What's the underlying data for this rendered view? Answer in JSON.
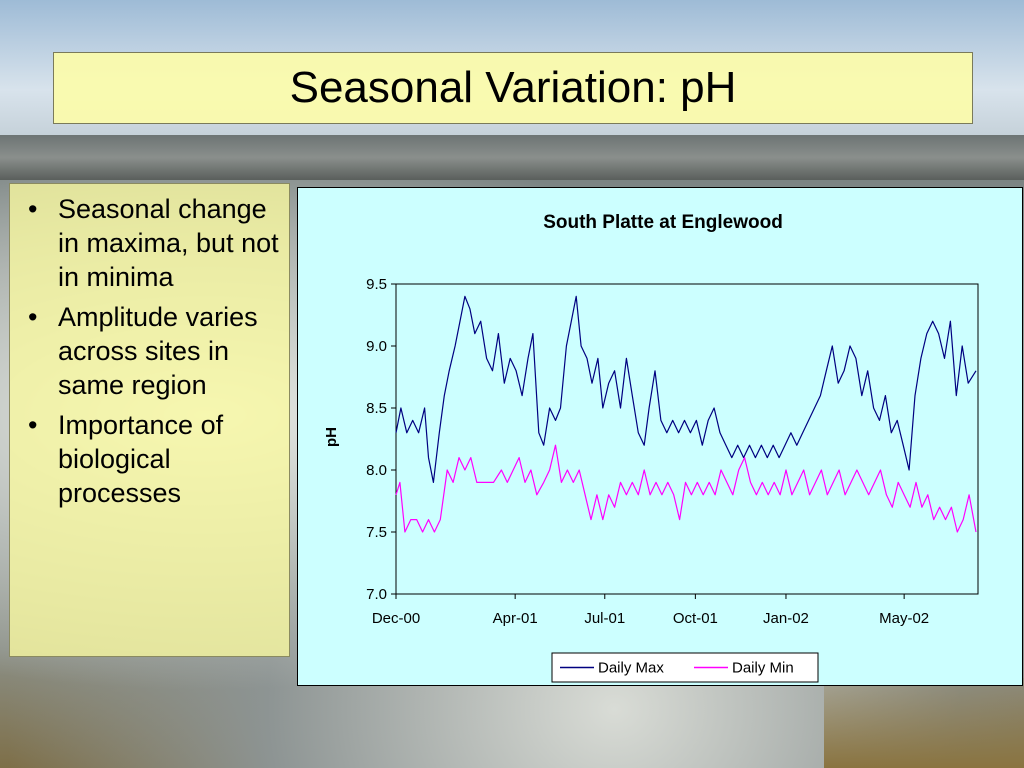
{
  "slide": {
    "title": "Seasonal Variation: pH",
    "bullets": [
      "Seasonal change in maxima, but not in minima",
      "Amplitude varies across sites in same region",
      "Importance of biological processes"
    ],
    "bullet_glyph": "•"
  },
  "colors": {
    "title_bg": "#fcfcaa",
    "chart_bg": "#ccffff",
    "max_line": "#000080",
    "min_line": "#ff00ff"
  },
  "chart_data": {
    "type": "line",
    "title": "South Platte at Englewood",
    "xlabel": "",
    "ylabel": "pH",
    "ylim": [
      7.0,
      9.5
    ],
    "yticks": [
      "7.0",
      "7.5",
      "8.0",
      "8.5",
      "9.0",
      "9.5"
    ],
    "xlim": [
      "2000-12-01",
      "2002-07-15"
    ],
    "xticks": [
      {
        "date": "2000-12-01",
        "label": "Dec-00"
      },
      {
        "date": "2001-04-01",
        "label": "Apr-01"
      },
      {
        "date": "2001-07-01",
        "label": "Jul-01"
      },
      {
        "date": "2001-10-01",
        "label": "Oct-01"
      },
      {
        "date": "2002-01-01",
        "label": "Jan-02"
      },
      {
        "date": "2002-05-01",
        "label": "May-02"
      }
    ],
    "legend_position": "bottom",
    "series": [
      {
        "name": "Daily Max",
        "color": "#000080",
        "points": [
          [
            "2000-12-01",
            8.3
          ],
          [
            "2000-12-06",
            8.5
          ],
          [
            "2000-12-12",
            8.3
          ],
          [
            "2000-12-18",
            8.4
          ],
          [
            "2000-12-24",
            8.3
          ],
          [
            "2000-12-30",
            8.5
          ],
          [
            "2001-01-03",
            8.1
          ],
          [
            "2001-01-08",
            7.9
          ],
          [
            "2001-01-14",
            8.3
          ],
          [
            "2001-01-19",
            8.6
          ],
          [
            "2001-01-24",
            8.8
          ],
          [
            "2001-01-30",
            9.0
          ],
          [
            "2001-02-04",
            9.2
          ],
          [
            "2001-02-09",
            9.4
          ],
          [
            "2001-02-14",
            9.3
          ],
          [
            "2001-02-19",
            9.1
          ],
          [
            "2001-02-25",
            9.2
          ],
          [
            "2001-03-03",
            8.9
          ],
          [
            "2001-03-09",
            8.8
          ],
          [
            "2001-03-15",
            9.1
          ],
          [
            "2001-03-21",
            8.7
          ],
          [
            "2001-03-27",
            8.9
          ],
          [
            "2001-04-02",
            8.8
          ],
          [
            "2001-04-08",
            8.6
          ],
          [
            "2001-04-14",
            8.9
          ],
          [
            "2001-04-19",
            9.1
          ],
          [
            "2001-04-25",
            8.3
          ],
          [
            "2001-04-30",
            8.2
          ],
          [
            "2001-05-06",
            8.5
          ],
          [
            "2001-05-12",
            8.4
          ],
          [
            "2001-05-17",
            8.5
          ],
          [
            "2001-05-23",
            9.0
          ],
          [
            "2001-05-28",
            9.2
          ],
          [
            "2001-06-02",
            9.4
          ],
          [
            "2001-06-07",
            9.0
          ],
          [
            "2001-06-13",
            8.9
          ],
          [
            "2001-06-18",
            8.7
          ],
          [
            "2001-06-24",
            8.9
          ],
          [
            "2001-06-29",
            8.5
          ],
          [
            "2001-07-05",
            8.7
          ],
          [
            "2001-07-11",
            8.8
          ],
          [
            "2001-07-17",
            8.5
          ],
          [
            "2001-07-23",
            8.9
          ],
          [
            "2001-07-29",
            8.6
          ],
          [
            "2001-08-04",
            8.3
          ],
          [
            "2001-08-10",
            8.2
          ],
          [
            "2001-08-15",
            8.5
          ],
          [
            "2001-08-21",
            8.8
          ],
          [
            "2001-08-27",
            8.4
          ],
          [
            "2001-09-02",
            8.3
          ],
          [
            "2001-09-08",
            8.4
          ],
          [
            "2001-09-14",
            8.3
          ],
          [
            "2001-09-20",
            8.4
          ],
          [
            "2001-09-26",
            8.3
          ],
          [
            "2001-10-02",
            8.4
          ],
          [
            "2001-10-08",
            8.2
          ],
          [
            "2001-10-14",
            8.4
          ],
          [
            "2001-10-20",
            8.5
          ],
          [
            "2001-10-26",
            8.3
          ],
          [
            "2001-11-01",
            8.2
          ],
          [
            "2001-11-07",
            8.1
          ],
          [
            "2001-11-13",
            8.2
          ],
          [
            "2001-11-19",
            8.1
          ],
          [
            "2001-11-25",
            8.2
          ],
          [
            "2001-12-01",
            8.1
          ],
          [
            "2001-12-07",
            8.2
          ],
          [
            "2001-12-13",
            8.1
          ],
          [
            "2001-12-19",
            8.2
          ],
          [
            "2001-12-25",
            8.1
          ],
          [
            "2001-12-31",
            8.2
          ],
          [
            "2002-01-06",
            8.3
          ],
          [
            "2002-01-12",
            8.2
          ],
          [
            "2002-01-18",
            8.3
          ],
          [
            "2002-01-24",
            8.4
          ],
          [
            "2002-01-30",
            8.5
          ],
          [
            "2002-02-05",
            8.6
          ],
          [
            "2002-02-11",
            8.8
          ],
          [
            "2002-02-17",
            9.0
          ],
          [
            "2002-02-23",
            8.7
          ],
          [
            "2002-03-01",
            8.8
          ],
          [
            "2002-03-07",
            9.0
          ],
          [
            "2002-03-13",
            8.9
          ],
          [
            "2002-03-19",
            8.6
          ],
          [
            "2002-03-25",
            8.8
          ],
          [
            "2002-03-31",
            8.5
          ],
          [
            "2002-04-06",
            8.4
          ],
          [
            "2002-04-12",
            8.6
          ],
          [
            "2002-04-18",
            8.3
          ],
          [
            "2002-04-24",
            8.4
          ],
          [
            "2002-04-30",
            8.2
          ],
          [
            "2002-05-06",
            8.0
          ],
          [
            "2002-05-12",
            8.6
          ],
          [
            "2002-05-18",
            8.9
          ],
          [
            "2002-05-24",
            9.1
          ],
          [
            "2002-05-30",
            9.2
          ],
          [
            "2002-06-05",
            9.1
          ],
          [
            "2002-06-11",
            8.9
          ],
          [
            "2002-06-17",
            9.2
          ],
          [
            "2002-06-23",
            8.6
          ],
          [
            "2002-06-29",
            9.0
          ],
          [
            "2002-07-05",
            8.7
          ],
          [
            "2002-07-13",
            8.8
          ]
        ]
      },
      {
        "name": "Daily Min",
        "color": "#ff00ff",
        "points": [
          [
            "2000-12-01",
            7.8
          ],
          [
            "2000-12-05",
            7.9
          ],
          [
            "2000-12-10",
            7.5
          ],
          [
            "2000-12-16",
            7.6
          ],
          [
            "2000-12-22",
            7.6
          ],
          [
            "2000-12-28",
            7.5
          ],
          [
            "2001-01-03",
            7.6
          ],
          [
            "2001-01-09",
            7.5
          ],
          [
            "2001-01-15",
            7.6
          ],
          [
            "2001-01-22",
            8.0
          ],
          [
            "2001-01-28",
            7.9
          ],
          [
            "2001-02-03",
            8.1
          ],
          [
            "2001-02-09",
            8.0
          ],
          [
            "2001-02-15",
            8.1
          ],
          [
            "2001-02-21",
            7.9
          ],
          [
            "2001-03-10",
            7.9
          ],
          [
            "2001-03-18",
            8.0
          ],
          [
            "2001-03-24",
            7.9
          ],
          [
            "2001-03-30",
            8.0
          ],
          [
            "2001-04-05",
            8.1
          ],
          [
            "2001-04-11",
            7.9
          ],
          [
            "2001-04-17",
            8.0
          ],
          [
            "2001-04-23",
            7.8
          ],
          [
            "2001-04-30",
            7.9
          ],
          [
            "2001-05-06",
            8.0
          ],
          [
            "2001-05-12",
            8.2
          ],
          [
            "2001-05-18",
            7.9
          ],
          [
            "2001-05-24",
            8.0
          ],
          [
            "2001-05-30",
            7.9
          ],
          [
            "2001-06-05",
            8.0
          ],
          [
            "2001-06-11",
            7.8
          ],
          [
            "2001-06-17",
            7.6
          ],
          [
            "2001-06-23",
            7.8
          ],
          [
            "2001-06-29",
            7.6
          ],
          [
            "2001-07-05",
            7.8
          ],
          [
            "2001-07-11",
            7.7
          ],
          [
            "2001-07-17",
            7.9
          ],
          [
            "2001-07-23",
            7.8
          ],
          [
            "2001-07-29",
            7.9
          ],
          [
            "2001-08-04",
            7.8
          ],
          [
            "2001-08-10",
            8.0
          ],
          [
            "2001-08-16",
            7.8
          ],
          [
            "2001-08-22",
            7.9
          ],
          [
            "2001-08-28",
            7.8
          ],
          [
            "2001-09-03",
            7.9
          ],
          [
            "2001-09-09",
            7.8
          ],
          [
            "2001-09-15",
            7.6
          ],
          [
            "2001-09-21",
            7.9
          ],
          [
            "2001-09-27",
            7.8
          ],
          [
            "2001-10-03",
            7.9
          ],
          [
            "2001-10-09",
            7.8
          ],
          [
            "2001-10-15",
            7.9
          ],
          [
            "2001-10-21",
            7.8
          ],
          [
            "2001-10-27",
            8.0
          ],
          [
            "2001-11-02",
            7.9
          ],
          [
            "2001-11-08",
            7.8
          ],
          [
            "2001-11-14",
            8.0
          ],
          [
            "2001-11-20",
            8.1
          ],
          [
            "2001-11-26",
            7.9
          ],
          [
            "2001-12-02",
            7.8
          ],
          [
            "2001-12-08",
            7.9
          ],
          [
            "2001-12-14",
            7.8
          ],
          [
            "2001-12-20",
            7.9
          ],
          [
            "2001-12-26",
            7.8
          ],
          [
            "2002-01-01",
            8.0
          ],
          [
            "2002-01-07",
            7.8
          ],
          [
            "2002-01-13",
            7.9
          ],
          [
            "2002-01-19",
            8.0
          ],
          [
            "2002-01-25",
            7.8
          ],
          [
            "2002-01-31",
            7.9
          ],
          [
            "2002-02-06",
            8.0
          ],
          [
            "2002-02-12",
            7.8
          ],
          [
            "2002-02-18",
            7.9
          ],
          [
            "2002-02-24",
            8.0
          ],
          [
            "2002-03-02",
            7.8
          ],
          [
            "2002-03-08",
            7.9
          ],
          [
            "2002-03-14",
            8.0
          ],
          [
            "2002-03-20",
            7.9
          ],
          [
            "2002-03-26",
            7.8
          ],
          [
            "2002-04-01",
            7.9
          ],
          [
            "2002-04-07",
            8.0
          ],
          [
            "2002-04-13",
            7.8
          ],
          [
            "2002-04-19",
            7.7
          ],
          [
            "2002-04-25",
            7.9
          ],
          [
            "2002-05-01",
            7.8
          ],
          [
            "2002-05-07",
            7.7
          ],
          [
            "2002-05-13",
            7.9
          ],
          [
            "2002-05-19",
            7.7
          ],
          [
            "2002-05-25",
            7.8
          ],
          [
            "2002-05-31",
            7.6
          ],
          [
            "2002-06-06",
            7.7
          ],
          [
            "2002-06-12",
            7.6
          ],
          [
            "2002-06-18",
            7.7
          ],
          [
            "2002-06-24",
            7.5
          ],
          [
            "2002-06-30",
            7.6
          ],
          [
            "2002-07-06",
            7.8
          ],
          [
            "2002-07-13",
            7.5
          ]
        ]
      }
    ]
  }
}
